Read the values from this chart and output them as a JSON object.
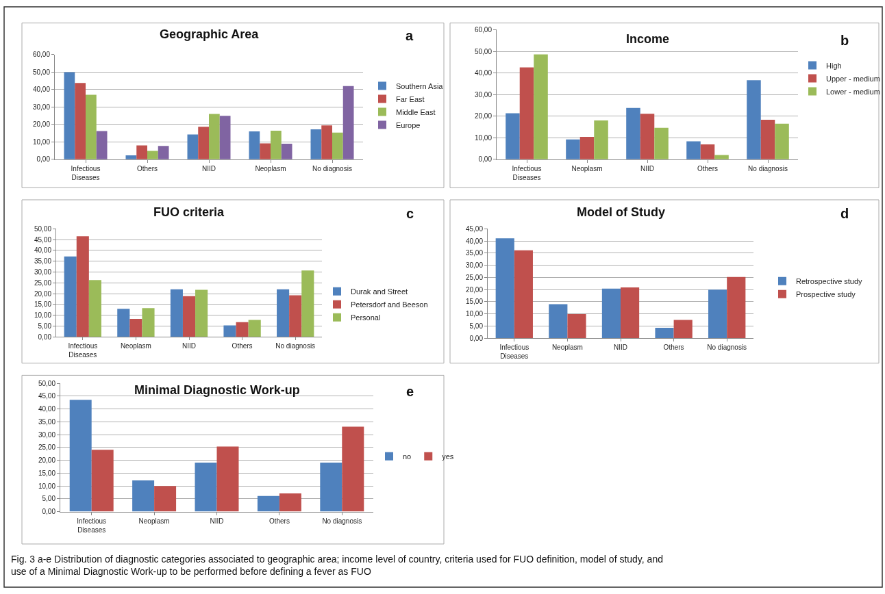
{
  "chart_data": [
    {
      "type": "bar",
      "title": "Geographic Area",
      "annotations": [
        "a"
      ],
      "categories": [
        "Infectious Diseases",
        "Others",
        "NIID",
        "Neoplasm",
        "No diagnosis"
      ],
      "series": [
        {
          "name": "Southern Asia",
          "color": "#4f81bd",
          "values": [
            50.0,
            2.3,
            14.3,
            16.0,
            17.2
          ]
        },
        {
          "name": "Far East",
          "color": "#c0504d",
          "values": [
            43.8,
            8.0,
            18.7,
            9.2,
            19.5
          ]
        },
        {
          "name": "Middle East",
          "color": "#9bbb59",
          "values": [
            37.0,
            4.8,
            26.0,
            16.4,
            15.3
          ]
        },
        {
          "name": "Europe",
          "color": "#8064a2",
          "values": [
            16.2,
            7.7,
            25.0,
            9.0,
            42.0
          ]
        }
      ],
      "ylim": [
        0,
        60
      ],
      "yticks": [
        {
          "value": 0,
          "label": "0,00"
        },
        {
          "value": 10,
          "label": "10,00"
        },
        {
          "value": 20,
          "label": "20,00"
        },
        {
          "value": 30,
          "label": "30,00"
        },
        {
          "value": 40,
          "label": "40,00"
        },
        {
          "value": 50,
          "label": "50,00"
        },
        {
          "value": 60,
          "label": "60,00"
        }
      ],
      "grid": "y",
      "legend": "right"
    },
    {
      "type": "bar",
      "title": "Income",
      "annotations": [
        "b"
      ],
      "categories": [
        "Infectious Diseases",
        "Neoplasm",
        "NIID",
        "Others",
        "No diagnosis"
      ],
      "series": [
        {
          "name": "High",
          "color": "#4f81bd",
          "values": [
            21.3,
            9.2,
            23.8,
            8.3,
            36.6
          ]
        },
        {
          "name": "Upper - medium",
          "color": "#c0504d",
          "values": [
            42.6,
            10.4,
            21.1,
            6.9,
            18.3
          ]
        },
        {
          "name": "Lower - medium",
          "color": "#9bbb59",
          "values": [
            48.6,
            18.0,
            14.6,
            2.0,
            16.5
          ]
        }
      ],
      "ylim": [
        0,
        60
      ],
      "yticks": [
        {
          "value": 0,
          "label": "0,00"
        },
        {
          "value": 10,
          "label": "10,00"
        },
        {
          "value": 20,
          "label": "20,00"
        },
        {
          "value": 30,
          "label": "30,00"
        },
        {
          "value": 40,
          "label": "40,00"
        },
        {
          "value": 50,
          "label": "50,00"
        },
        {
          "value": 60,
          "label": "60,00"
        }
      ],
      "grid": "y",
      "legend": "right"
    },
    {
      "type": "bar",
      "title": "FUO criteria",
      "annotations": [
        "c"
      ],
      "categories": [
        "Infectious Diseases",
        "Neoplasm",
        "NIID",
        "Others",
        "No diagnosis"
      ],
      "series": [
        {
          "name": "Durak and Street",
          "color": "#4f81bd",
          "values": [
            37.2,
            13.0,
            22.0,
            5.3,
            22.0
          ]
        },
        {
          "name": "Petersdorf and Beeson",
          "color": "#c0504d",
          "values": [
            46.6,
            8.3,
            18.8,
            6.8,
            19.2
          ]
        },
        {
          "name": "Personal",
          "color": "#9bbb59",
          "values": [
            26.3,
            13.3,
            21.8,
            7.8,
            30.7
          ]
        }
      ],
      "ylim": [
        0,
        50
      ],
      "yticks": [
        {
          "value": 0,
          "label": "0,00"
        },
        {
          "value": 5,
          "label": "5,00"
        },
        {
          "value": 10,
          "label": "10,00"
        },
        {
          "value": 15,
          "label": "15,00"
        },
        {
          "value": 20,
          "label": "20,00"
        },
        {
          "value": 25,
          "label": "25,00"
        },
        {
          "value": 30,
          "label": "30,00"
        },
        {
          "value": 35,
          "label": "35,00"
        },
        {
          "value": 40,
          "label": "40,00"
        },
        {
          "value": 45,
          "label": "45,00"
        },
        {
          "value": 50,
          "label": "50,00"
        }
      ],
      "grid": "y",
      "legend": "right"
    },
    {
      "type": "bar",
      "title": "Model of Study",
      "annotations": [
        "d"
      ],
      "categories": [
        "Infectious Diseases",
        "Neoplasm",
        "NIID",
        "Others",
        "No diagnosis"
      ],
      "series": [
        {
          "name": "Retrospective study",
          "color": "#4f81bd",
          "values": [
            41.1,
            14.0,
            20.4,
            4.3,
            20.0
          ]
        },
        {
          "name": "Prospective study",
          "color": "#c0504d",
          "values": [
            36.2,
            9.9,
            20.9,
            7.5,
            25.2
          ]
        }
      ],
      "ylim": [
        0,
        45
      ],
      "yticks": [
        {
          "value": 0,
          "label": "0,00"
        },
        {
          "value": 5,
          "label": "5,00"
        },
        {
          "value": 10,
          "label": "10,00"
        },
        {
          "value": 15,
          "label": "15,00"
        },
        {
          "value": 20,
          "label": "20,00"
        },
        {
          "value": 25,
          "label": "25,00"
        },
        {
          "value": 30,
          "label": "30,00"
        },
        {
          "value": 35,
          "label": "35,00"
        },
        {
          "value": 40,
          "label": "40,00"
        },
        {
          "value": 45,
          "label": "45,00"
        }
      ],
      "grid": "y",
      "legend": "right"
    },
    {
      "type": "bar",
      "title": "Minimal Diagnostic Work-up",
      "annotations": [
        "e",
        "Fig. 3 a-e Distribution of diagnostic categories associated to geographic area; income level of country, criteria used for FUO definition, model of study, and use of a Minimal Diagnostic Work-up to be performed before defining a fever as FUO"
      ],
      "categories": [
        "Infectious Diseases",
        "Neoplasm",
        "NIID",
        "Others",
        "No diagnosis"
      ],
      "series": [
        {
          "name": "no",
          "color": "#4f81bd",
          "values": [
            43.6,
            12.2,
            19.1,
            6.1,
            19.1
          ]
        },
        {
          "name": "yes",
          "color": "#c0504d",
          "values": [
            24.1,
            10.0,
            25.4,
            7.1,
            33.1
          ]
        }
      ],
      "ylim": [
        0,
        50
      ],
      "yticks": [
        {
          "value": 0,
          "label": "0,00"
        },
        {
          "value": 5,
          "label": "5,00"
        },
        {
          "value": 10,
          "label": "10,00"
        },
        {
          "value": 15,
          "label": "15,00"
        },
        {
          "value": 20,
          "label": "20,00"
        },
        {
          "value": 25,
          "label": "25,00"
        },
        {
          "value": 30,
          "label": "30,00"
        },
        {
          "value": 35,
          "label": "35,00"
        },
        {
          "value": 40,
          "label": "40,00"
        },
        {
          "value": 45,
          "label": "45,00"
        },
        {
          "value": 50,
          "label": "50,00"
        }
      ],
      "grid": "y",
      "legend": "right"
    }
  ]
}
